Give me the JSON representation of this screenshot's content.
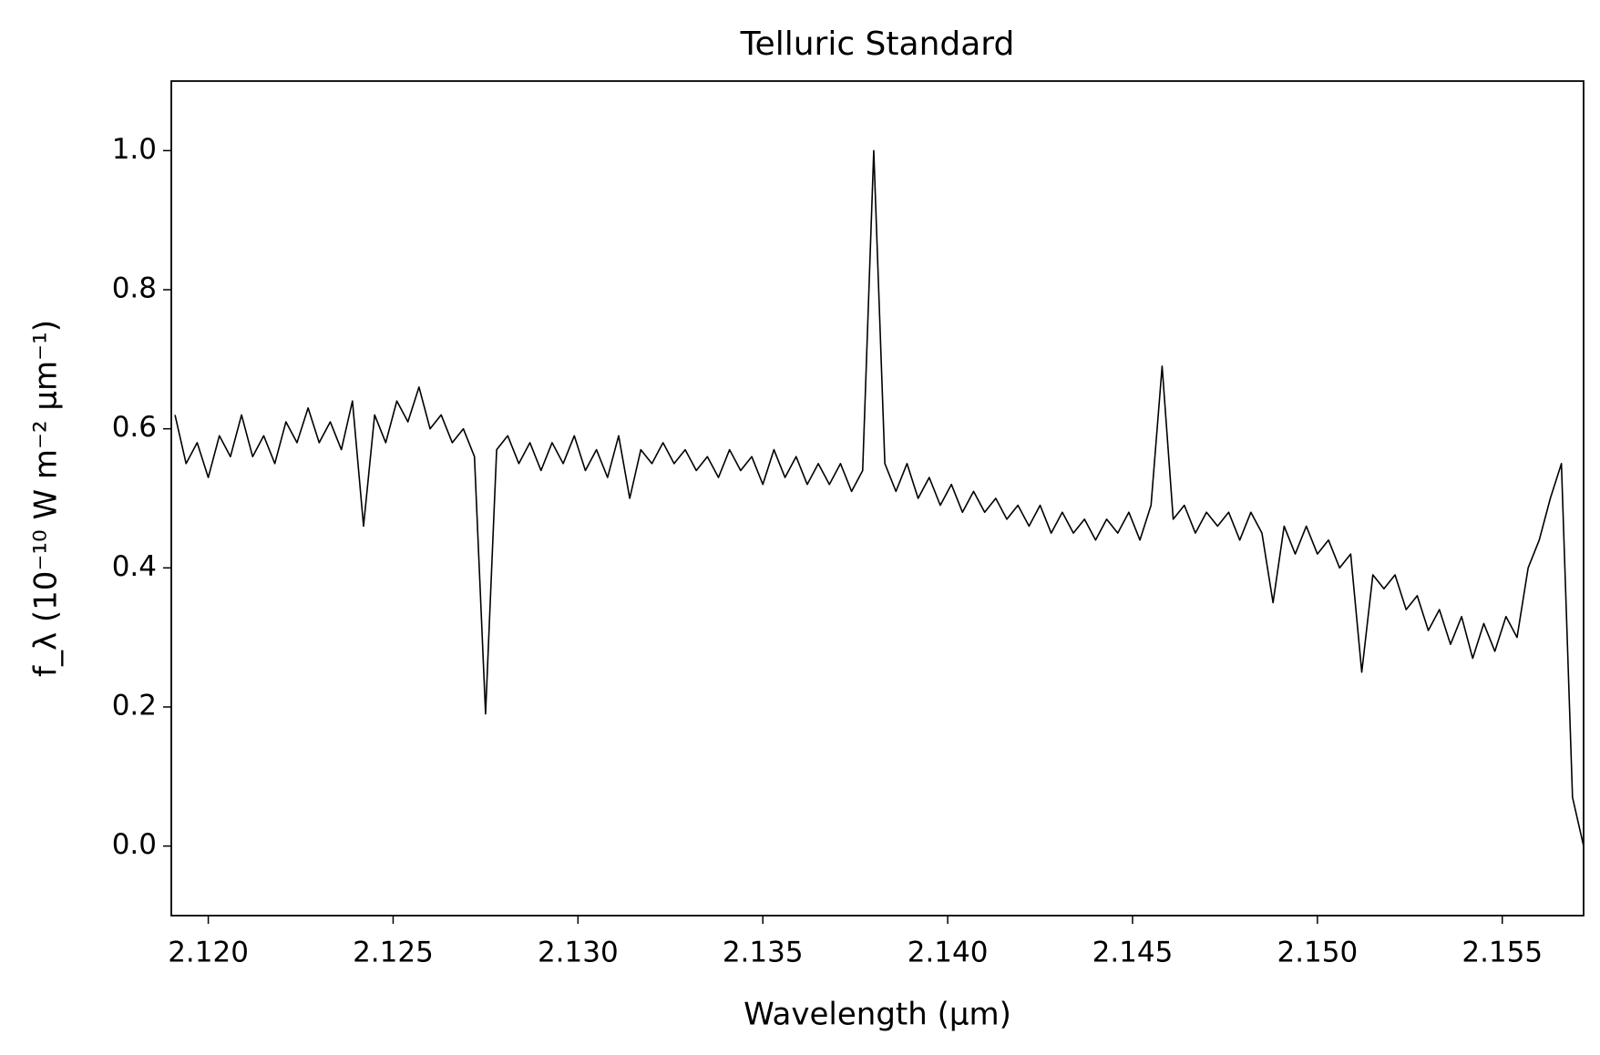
{
  "chart_data": {
    "type": "line",
    "title": "Telluric Standard",
    "x_label": "Wavelength (μm)",
    "y_label": "f_λ (10⁻¹⁰ W m⁻² μm⁻¹)",
    "x": [
      2.1191,
      2.1194,
      2.1197,
      2.12,
      2.1203,
      2.1206,
      2.1209,
      2.1212,
      2.1215,
      2.1218,
      2.1221,
      2.1224,
      2.1227,
      2.123,
      2.1233,
      2.1236,
      2.1239,
      2.1242,
      2.1245,
      2.1248,
      2.1251,
      2.1254,
      2.1257,
      2.126,
      2.1263,
      2.1266,
      2.1269,
      2.1272,
      2.1275,
      2.1278,
      2.1281,
      2.1284,
      2.1287,
      2.129,
      2.1293,
      2.1296,
      2.1299,
      2.1302,
      2.1305,
      2.1308,
      2.1311,
      2.1314,
      2.1317,
      2.132,
      2.1323,
      2.1326,
      2.1329,
      2.1332,
      2.1335,
      2.1338,
      2.1341,
      2.1344,
      2.1347,
      2.135,
      2.1353,
      2.1356,
      2.1359,
      2.1362,
      2.1365,
      2.1368,
      2.1371,
      2.1374,
      2.1377,
      2.138,
      2.1383,
      2.1386,
      2.1389,
      2.1392,
      2.1395,
      2.1398,
      2.1401,
      2.1404,
      2.1407,
      2.141,
      2.1413,
      2.1416,
      2.1419,
      2.1422,
      2.1425,
      2.1428,
      2.1431,
      2.1434,
      2.1437,
      2.144,
      2.1443,
      2.1446,
      2.1449,
      2.1452,
      2.1455,
      2.1458,
      2.1461,
      2.1464,
      2.1467,
      2.147,
      2.1473,
      2.1476,
      2.1479,
      2.1482,
      2.1485,
      2.1488,
      2.1491,
      2.1494,
      2.1497,
      2.15,
      2.1503,
      2.1506,
      2.1509,
      2.1512,
      2.1515,
      2.1518,
      2.1521,
      2.1524,
      2.1527,
      2.153,
      2.1533,
      2.1536,
      2.1539,
      2.1542,
      2.1545,
      2.1548,
      2.1551,
      2.1554,
      2.1557,
      2.156,
      2.1563,
      2.1566,
      2.1569,
      2.1572
    ],
    "series": [
      {
        "color": "#000000",
        "values": [
          0.62,
          0.55,
          0.58,
          0.53,
          0.59,
          0.56,
          0.62,
          0.56,
          0.59,
          0.55,
          0.61,
          0.58,
          0.63,
          0.58,
          0.61,
          0.57,
          0.64,
          0.46,
          0.62,
          0.58,
          0.64,
          0.61,
          0.66,
          0.6,
          0.62,
          0.58,
          0.6,
          0.56,
          0.19,
          0.57,
          0.59,
          0.55,
          0.58,
          0.54,
          0.58,
          0.55,
          0.59,
          0.54,
          0.57,
          0.53,
          0.59,
          0.5,
          0.57,
          0.55,
          0.58,
          0.55,
          0.57,
          0.54,
          0.56,
          0.53,
          0.57,
          0.54,
          0.56,
          0.52,
          0.57,
          0.53,
          0.56,
          0.52,
          0.55,
          0.52,
          0.55,
          0.51,
          0.54,
          1.0,
          0.55,
          0.51,
          0.55,
          0.5,
          0.53,
          0.49,
          0.52,
          0.48,
          0.51,
          0.48,
          0.5,
          0.47,
          0.49,
          0.46,
          0.49,
          0.45,
          0.48,
          0.45,
          0.47,
          0.44,
          0.47,
          0.45,
          0.48,
          0.44,
          0.49,
          0.69,
          0.47,
          0.49,
          0.45,
          0.48,
          0.46,
          0.48,
          0.44,
          0.48,
          0.45,
          0.35,
          0.46,
          0.42,
          0.46,
          0.42,
          0.44,
          0.4,
          0.42,
          0.25,
          0.39,
          0.37,
          0.39,
          0.34,
          0.36,
          0.31,
          0.34,
          0.29,
          0.33,
          0.27,
          0.32,
          0.28,
          0.33,
          0.3,
          0.4,
          0.44,
          0.5,
          0.55,
          0.07,
          0.0
        ]
      }
    ],
    "xlim": [
      2.119,
      2.1572
    ],
    "ylim": [
      -0.1,
      1.1
    ],
    "xticks": [
      {
        "value": 2.12,
        "label": "2.120"
      },
      {
        "value": 2.125,
        "label": "2.125"
      },
      {
        "value": 2.13,
        "label": "2.130"
      },
      {
        "value": 2.135,
        "label": "2.135"
      },
      {
        "value": 2.14,
        "label": "2.140"
      },
      {
        "value": 2.145,
        "label": "2.145"
      },
      {
        "value": 2.15,
        "label": "2.150"
      },
      {
        "value": 2.155,
        "label": "2.155"
      }
    ],
    "yticks": [
      {
        "value": 0,
        "label": "0.0"
      },
      0.2,
      0.4,
      0.6,
      0.8,
      {
        "value": 1,
        "label": "1.0"
      }
    ],
    "grid": false
  }
}
